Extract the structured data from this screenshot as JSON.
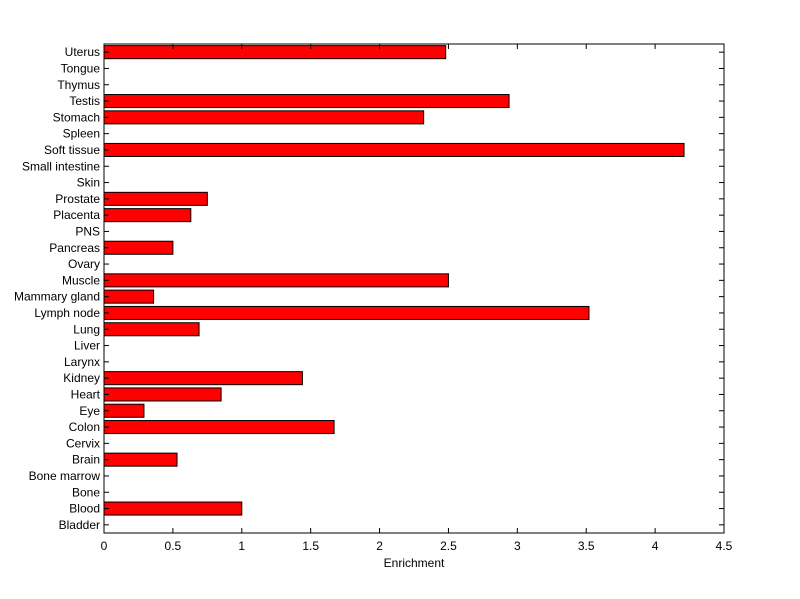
{
  "chart_data": {
    "type": "bar",
    "orientation": "horizontal",
    "title": "",
    "xlabel": "Enrichment",
    "ylabel": "",
    "xlim": [
      0,
      4.5
    ],
    "x_ticks": [
      0,
      0.5,
      1,
      1.5,
      2,
      2.5,
      3,
      3.5,
      4,
      4.5
    ],
    "x_tick_labels": [
      "0",
      "0.5",
      "1",
      "1.5",
      "2",
      "2.5",
      "3",
      "3.5",
      "4",
      "4.5"
    ],
    "grid": false,
    "bar_color": "#ff0000",
    "bar_edge_color": "#000000",
    "categories": [
      "Uterus",
      "Tongue",
      "Thymus",
      "Testis",
      "Stomach",
      "Spleen",
      "Soft tissue",
      "Small intestine",
      "Skin",
      "Prostate",
      "Placenta",
      "PNS",
      "Pancreas",
      "Ovary",
      "Muscle",
      "Mammary gland",
      "Lymph node",
      "Lung",
      "Liver",
      "Larynx",
      "Kidney",
      "Heart",
      "Eye",
      "Colon",
      "Cervix",
      "Brain",
      "Bone marrow",
      "Bone",
      "Blood",
      "Bladder"
    ],
    "values": [
      2.48,
      0,
      0,
      2.94,
      2.32,
      0,
      4.21,
      0,
      0,
      0.75,
      0.63,
      0,
      0.5,
      0,
      2.5,
      0.36,
      3.52,
      0.69,
      0,
      0,
      1.44,
      0.85,
      0.29,
      1.67,
      0,
      0.53,
      0,
      0,
      1.0,
      0
    ]
  }
}
